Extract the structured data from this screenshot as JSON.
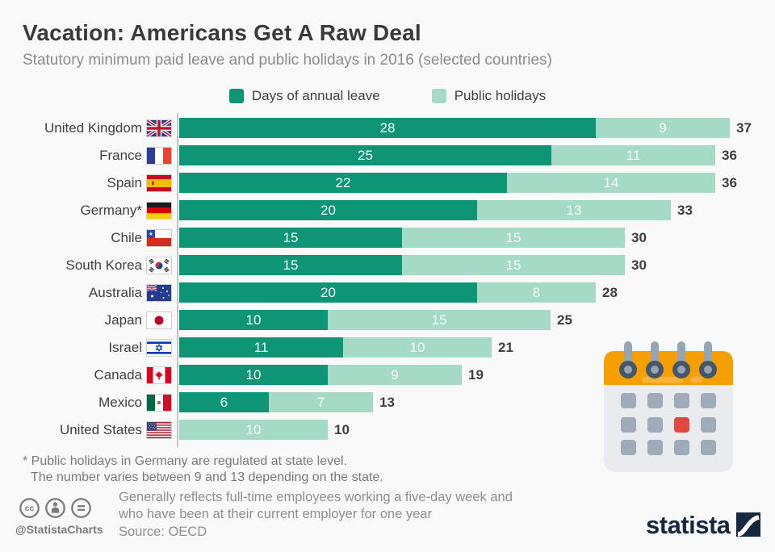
{
  "header": {
    "title": "Vacation: Americans Get A Raw Deal",
    "subtitle": "Statutory minimum paid leave and public holidays in 2016 (selected countries)"
  },
  "legend": [
    {
      "label": "Days of annual leave",
      "color": "#0e9576"
    },
    {
      "label": "Public holidays",
      "color": "#a5dac6"
    }
  ],
  "chart_data": {
    "type": "bar",
    "orientation": "horizontal",
    "stacked": true,
    "unit": "days",
    "xlim": [
      0,
      37
    ],
    "grid": false,
    "legend_position": "top-center",
    "categories": [
      "United Kingdom",
      "France",
      "Spain",
      "Germany*",
      "Chile",
      "South Korea",
      "Australia",
      "Japan",
      "Israel",
      "Canada",
      "Mexico",
      "United States"
    ],
    "flags": [
      "uk",
      "france",
      "spain",
      "germany",
      "chile",
      "south-korea",
      "australia",
      "japan",
      "israel",
      "canada",
      "mexico",
      "united-states"
    ],
    "series": [
      {
        "name": "Days of annual leave",
        "color": "#0e9576",
        "values": [
          28,
          25,
          22,
          20,
          15,
          15,
          20,
          10,
          11,
          10,
          6,
          0
        ]
      },
      {
        "name": "Public holidays",
        "color": "#a5dac6",
        "values": [
          9,
          11,
          14,
          13,
          15,
          15,
          8,
          15,
          10,
          9,
          7,
          10
        ]
      }
    ],
    "totals": [
      37,
      36,
      36,
      33,
      30,
      30,
      28,
      25,
      21,
      19,
      13,
      10
    ]
  },
  "footnote": {
    "line1": "* Public holidays in Germany are regulated at state level.",
    "line2": "The number varies between 9 and 13 depending on the state."
  },
  "footer": {
    "note_line1": "Generally reflects full-time employees working a five-day week and",
    "note_line2": "who have been at their current employer for one year",
    "source": "Source: OECD",
    "credit": "@StatistaCharts",
    "brand": "statista"
  },
  "colors": {
    "annual_leave": "#0e9576",
    "public_holidays": "#a5dac6",
    "calendar_orange": "#f5a000",
    "calendar_red": "#e0483b",
    "brand_navy": "#16273e",
    "background": "#f9f9f9"
  }
}
